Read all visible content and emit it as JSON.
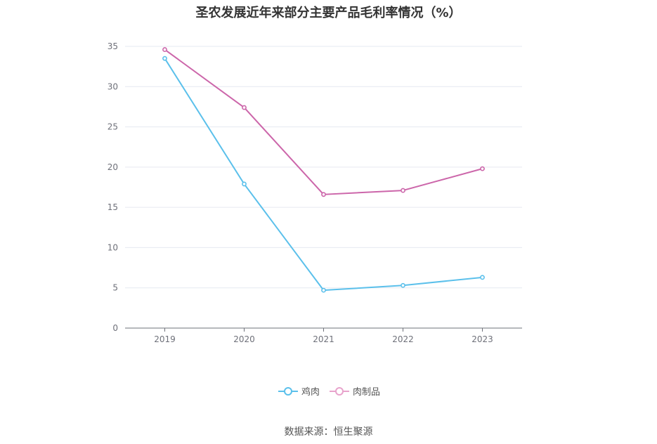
{
  "title": "圣农发展近年来部分主要产品毛利率情况（%）",
  "source": "数据来源：恒生聚源",
  "chart_data": {
    "type": "line",
    "title": "圣农发展近年来部分主要产品毛利率情况（%）",
    "categories": [
      "2019",
      "2020",
      "2021",
      "2022",
      "2023"
    ],
    "series": [
      {
        "name": "鸡肉",
        "values": [
          33.5,
          17.9,
          4.7,
          5.3,
          6.3
        ],
        "color": "#5bc0eb"
      },
      {
        "name": "肉制品",
        "values": [
          34.6,
          27.4,
          16.6,
          17.1,
          19.8
        ],
        "color": "#cc66aa"
      }
    ],
    "ylim": [
      0,
      35
    ],
    "yticks": [
      0,
      5,
      10,
      15,
      20,
      25,
      30,
      35
    ],
    "grid": true,
    "legend": "bottom-center"
  }
}
